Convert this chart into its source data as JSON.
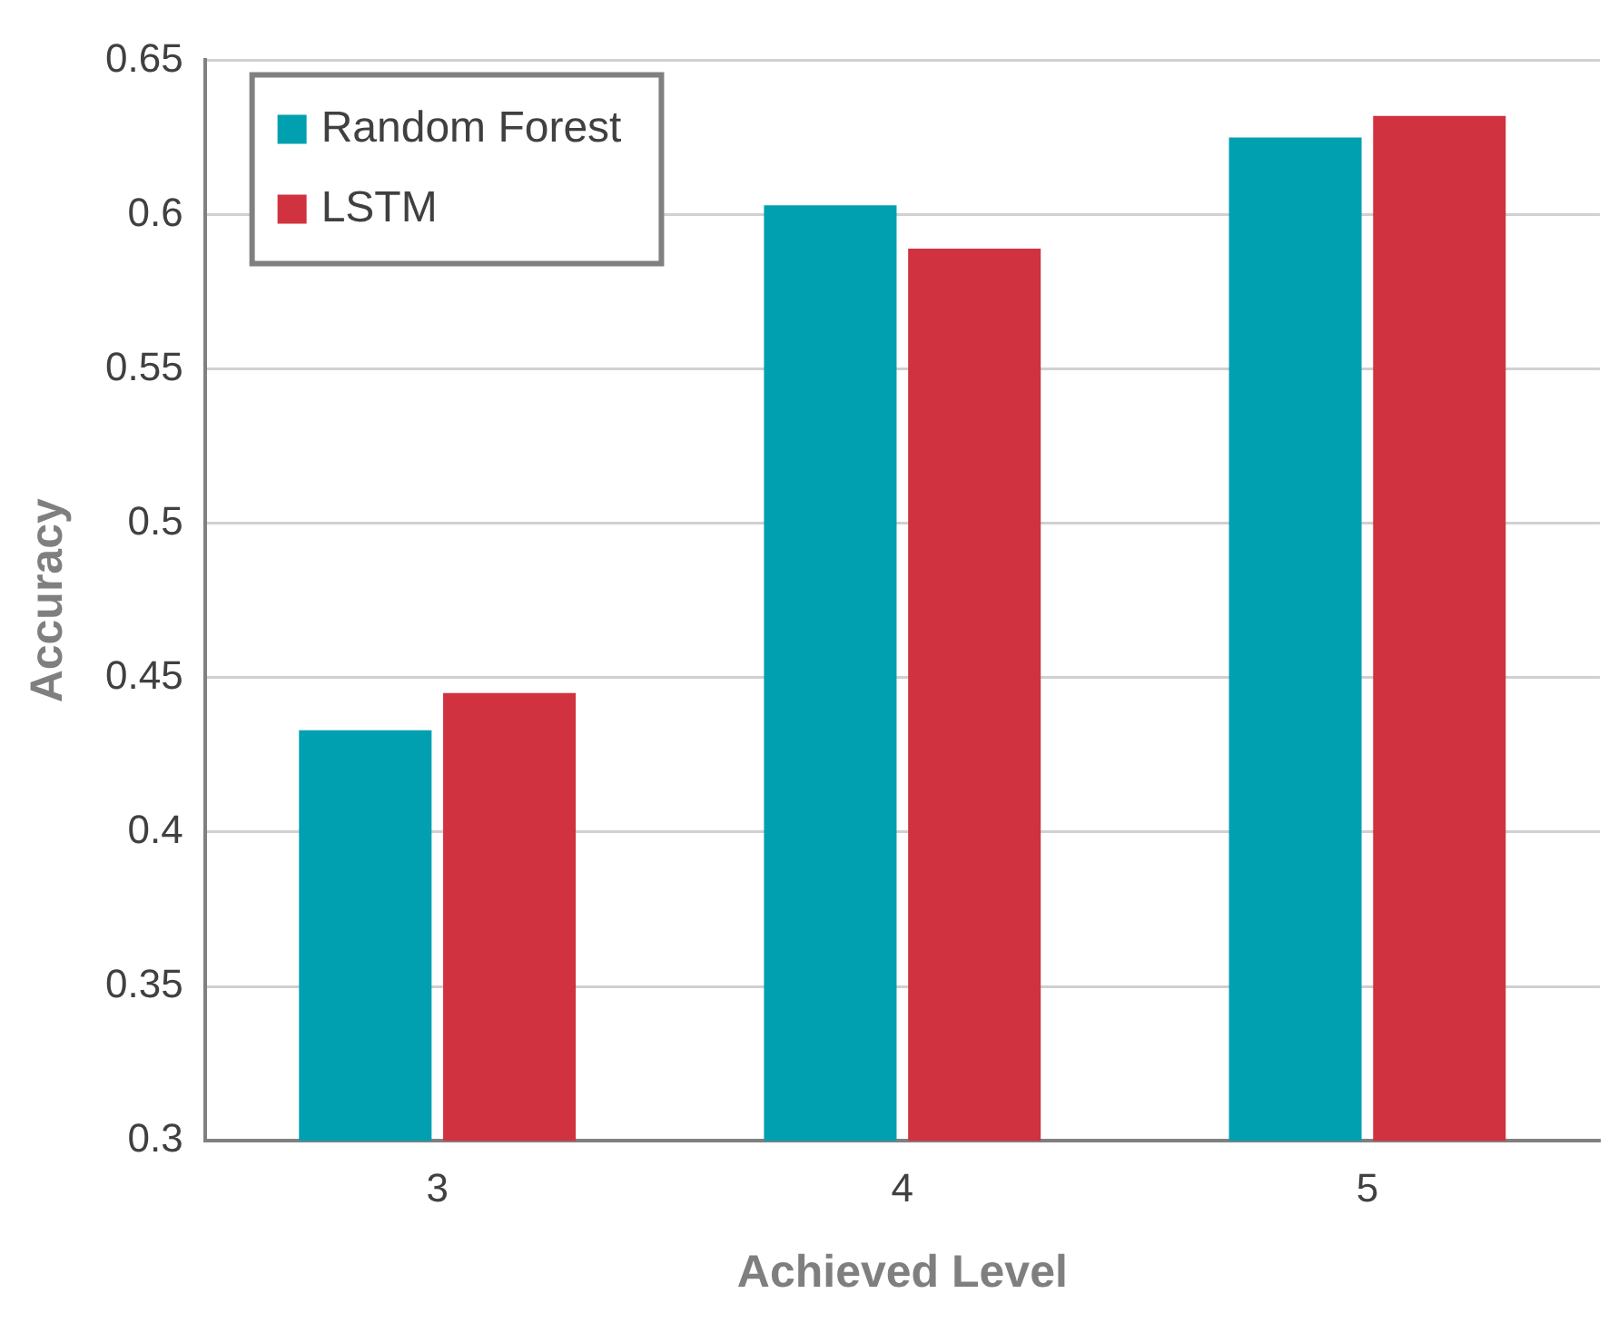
{
  "chart_data": {
    "type": "bar",
    "xlabel": "Achieved Level",
    "ylabel": "Accuracy",
    "categories": [
      "3",
      "4",
      "5"
    ],
    "series": [
      {
        "name": "Random Forest",
        "color": "#00a0b0",
        "values": [
          0.433,
          0.603,
          0.625
        ]
      },
      {
        "name": "LSTM",
        "color": "#d0323f",
        "values": [
          0.445,
          0.589,
          0.632
        ]
      }
    ],
    "ylim": [
      0.3,
      0.65
    ],
    "yticks": [
      0.3,
      0.35,
      0.4,
      0.45,
      0.5,
      0.55,
      0.6,
      0.65
    ],
    "grid": "y",
    "legend": "top left"
  }
}
